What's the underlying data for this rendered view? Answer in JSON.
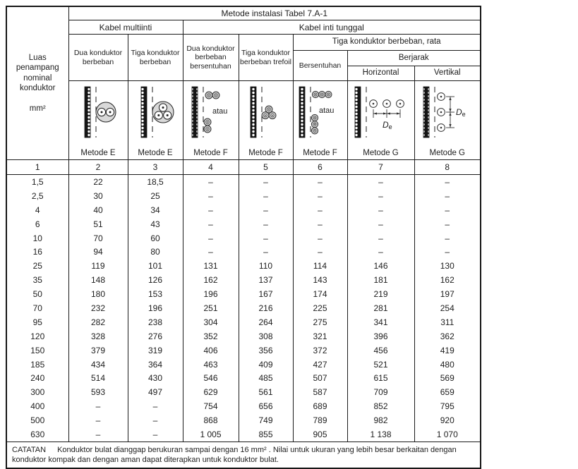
{
  "title_row": "Metode instalasi Tabel 7.A-1",
  "header": {
    "area_label": "Luas penampang nominal konduktor",
    "area_unit": "mm²",
    "kabel_multiinti": "Kabel multiinti",
    "kabel_inti_tunggal": "Kabel inti tunggal",
    "dua_berbeban": "Dua konduktor berbeban",
    "tiga_berbeban": "Tiga konduktor berbeban",
    "dua_bersentuhan": "Dua konduktor berbeban bersentuhan",
    "tiga_trefoil": "Tiga konduktor berbeban trefoil",
    "tiga_rata": "Tiga konduktor berbeban, rata",
    "bersentuhan": "Bersentuhan",
    "berjarak": "Berjarak",
    "horizontal": "Horizontal",
    "vertikal": "Vertikal"
  },
  "diagrams": {
    "labels": [
      "Metode E",
      "Metode E",
      "Metode F",
      "Metode F",
      "Metode F",
      "Metode G",
      "Metode G"
    ],
    "atau": "atau",
    "de_d": "D",
    "de_sub": "e"
  },
  "column_numbers": [
    "1",
    "2",
    "3",
    "4",
    "5",
    "6",
    "7",
    "8"
  ],
  "rows": [
    {
      "size": "1,5",
      "values": [
        "22",
        "18,5",
        "–",
        "–",
        "–",
        "–",
        "–"
      ]
    },
    {
      "size": "2,5",
      "values": [
        "30",
        "25",
        "–",
        "–",
        "–",
        "–",
        "–"
      ]
    },
    {
      "size": "4",
      "values": [
        "40",
        "34",
        "–",
        "–",
        "–",
        "–",
        "–"
      ]
    },
    {
      "size": "6",
      "values": [
        "51",
        "43",
        "–",
        "–",
        "–",
        "–",
        "–"
      ]
    },
    {
      "size": "10",
      "values": [
        "70",
        "60",
        "–",
        "–",
        "–",
        "–",
        "–"
      ]
    },
    {
      "size": "16",
      "values": [
        "94",
        "80",
        "–",
        "–",
        "–",
        "–",
        "–"
      ]
    },
    {
      "size": "25",
      "values": [
        "119",
        "101",
        "131",
        "110",
        "114",
        "146",
        "130"
      ]
    },
    {
      "size": "35",
      "values": [
        "148",
        "126",
        "162",
        "137",
        "143",
        "181",
        "162"
      ]
    },
    {
      "size": "50",
      "values": [
        "180",
        "153",
        "196",
        "167",
        "174",
        "219",
        "197"
      ]
    },
    {
      "size": "70",
      "values": [
        "232",
        "196",
        "251",
        "216",
        "225",
        "281",
        "254"
      ]
    },
    {
      "size": "95",
      "values": [
        "282",
        "238",
        "304",
        "264",
        "275",
        "341",
        "311"
      ]
    },
    {
      "size": "120",
      "values": [
        "328",
        "276",
        "352",
        "308",
        "321",
        "396",
        "362"
      ]
    },
    {
      "size": "150",
      "values": [
        "379",
        "319",
        "406",
        "356",
        "372",
        "456",
        "419"
      ]
    },
    {
      "size": "185",
      "values": [
        "434",
        "364",
        "463",
        "409",
        "427",
        "521",
        "480"
      ]
    },
    {
      "size": "240",
      "values": [
        "514",
        "430",
        "546",
        "485",
        "507",
        "615",
        "569"
      ]
    },
    {
      "size": "300",
      "values": [
        "593",
        "497",
        "629",
        "561",
        "587",
        "709",
        "659"
      ]
    },
    {
      "size": "400",
      "values": [
        "–",
        "–",
        "754",
        "656",
        "689",
        "852",
        "795"
      ]
    },
    {
      "size": "500",
      "values": [
        "–",
        "–",
        "868",
        "749",
        "789",
        "982",
        "920"
      ]
    },
    {
      "size": "630",
      "values": [
        "–",
        "–",
        "1 005",
        "855",
        "905",
        "1 138",
        "1 070"
      ]
    }
  ],
  "note": {
    "label": "CATATAN",
    "text": "Konduktor bulat dianggap berukuran sampai dengan 16 mm² . Nilai untuk ukuran yang lebih besar berkaitan dengan konduktor kompak dan dengan aman dapat diterapkan untuk konduktor bulat."
  }
}
